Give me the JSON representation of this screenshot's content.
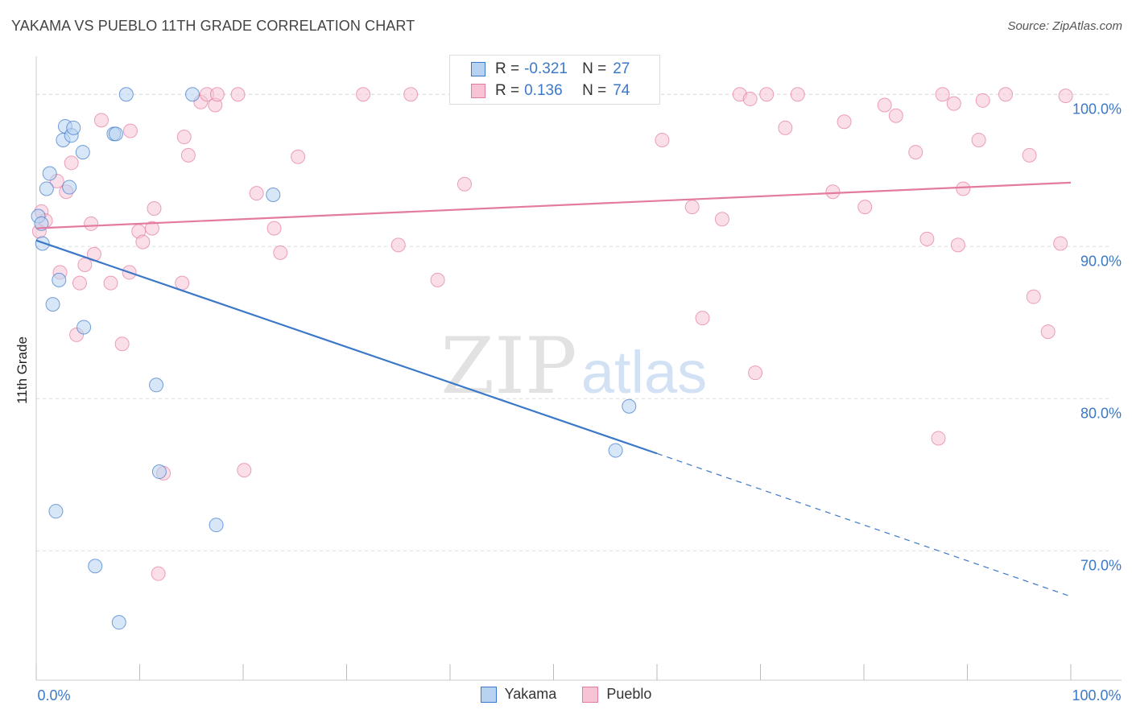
{
  "header": {
    "title": "YAKAMA VS PUEBLO 11TH GRADE CORRELATION CHART",
    "source": "Source: ZipAtlas.com"
  },
  "watermark": {
    "zip": "ZIP",
    "atlas": "atlas"
  },
  "legend": {
    "rows": [
      {
        "r_label": "R =",
        "r_value": "-0.321",
        "n_label": "N =",
        "n_value": "27"
      },
      {
        "r_label": "R =",
        "r_value": "0.136",
        "n_label": "N =",
        "n_value": "74"
      }
    ]
  },
  "colors": {
    "yakama": "#3b78c9",
    "yakama_fill": "#b8d3f2",
    "pueblo": "#e37aa0",
    "pueblo_fill": "#f7c4d5",
    "grid": "#dddddd",
    "tick_label": "#3b78c9"
  },
  "chart_data": {
    "type": "scatter",
    "title": "YAKAMA VS PUEBLO 11TH GRADE CORRELATION CHART",
    "xlabel": "",
    "ylabel": "11th Grade",
    "xlim": [
      0,
      100
    ],
    "ylim": [
      61.5,
      102.5
    ],
    "x_tick_labels": [
      {
        "value": 0,
        "label": "0.0%"
      },
      {
        "value": 100,
        "label": "100.0%"
      }
    ],
    "y_tick_labels": [
      {
        "value": 100,
        "label": "100.0%"
      },
      {
        "value": 90,
        "label": "90.0%"
      },
      {
        "value": 80,
        "label": "80.0%"
      },
      {
        "value": 70,
        "label": "70.0%"
      }
    ],
    "grid": true,
    "legend_position": "bottom-center",
    "series": [
      {
        "name": "Yakama",
        "R": -0.321,
        "N": 27,
        "trend": {
          "x0": 0,
          "y0": 90.4,
          "x1": 60,
          "y1": 76.4,
          "dash_to_x": 100,
          "dash_to_y": 67.0
        },
        "points": [
          [
            0.2,
            92.0
          ],
          [
            0.5,
            91.5
          ],
          [
            0.6,
            90.2
          ],
          [
            1.0,
            93.8
          ],
          [
            1.3,
            94.8
          ],
          [
            1.6,
            86.2
          ],
          [
            1.9,
            72.6
          ],
          [
            2.2,
            87.8
          ],
          [
            2.6,
            97.0
          ],
          [
            2.8,
            97.9
          ],
          [
            3.2,
            93.9
          ],
          [
            3.4,
            97.3
          ],
          [
            3.6,
            97.8
          ],
          [
            4.5,
            96.2
          ],
          [
            4.6,
            84.7
          ],
          [
            5.7,
            69.0
          ],
          [
            7.5,
            97.4
          ],
          [
            7.7,
            97.4
          ],
          [
            8.0,
            65.3
          ],
          [
            8.7,
            100.0
          ],
          [
            11.6,
            80.9
          ],
          [
            11.9,
            75.2
          ],
          [
            15.1,
            100.0
          ],
          [
            17.4,
            71.7
          ],
          [
            22.9,
            93.4
          ],
          [
            56.0,
            76.6
          ],
          [
            57.3,
            79.5
          ]
        ]
      },
      {
        "name": "Pueblo",
        "R": 0.136,
        "N": 74,
        "trend": {
          "x0": 0,
          "y0": 91.2,
          "x1": 100,
          "y1": 94.2
        },
        "points": [
          [
            0.3,
            91.0
          ],
          [
            0.5,
            92.3
          ],
          [
            0.9,
            91.7
          ],
          [
            2.0,
            94.3
          ],
          [
            2.3,
            88.3
          ],
          [
            2.9,
            93.6
          ],
          [
            3.4,
            95.5
          ],
          [
            3.9,
            84.2
          ],
          [
            4.2,
            87.6
          ],
          [
            4.7,
            88.8
          ],
          [
            5.3,
            91.5
          ],
          [
            5.6,
            89.5
          ],
          [
            6.3,
            98.3
          ],
          [
            7.2,
            87.6
          ],
          [
            8.3,
            83.6
          ],
          [
            9.0,
            88.3
          ],
          [
            9.1,
            97.6
          ],
          [
            9.9,
            91.0
          ],
          [
            10.3,
            90.3
          ],
          [
            11.2,
            91.2
          ],
          [
            11.4,
            92.5
          ],
          [
            11.8,
            68.5
          ],
          [
            12.3,
            75.1
          ],
          [
            14.1,
            87.6
          ],
          [
            14.3,
            97.2
          ],
          [
            14.7,
            96.0
          ],
          [
            15.9,
            99.5
          ],
          [
            16.5,
            100.0
          ],
          [
            17.3,
            99.3
          ],
          [
            17.5,
            100.0
          ],
          [
            19.5,
            100.0
          ],
          [
            20.1,
            75.3
          ],
          [
            21.3,
            93.5
          ],
          [
            23.0,
            91.2
          ],
          [
            23.6,
            89.6
          ],
          [
            25.3,
            95.9
          ],
          [
            31.6,
            100.0
          ],
          [
            35.0,
            90.1
          ],
          [
            36.2,
            100.0
          ],
          [
            38.8,
            87.8
          ],
          [
            41.4,
            94.1
          ],
          [
            42.2,
            100.0
          ],
          [
            45.1,
            100.0
          ],
          [
            47.1,
            100.0
          ],
          [
            60.5,
            97.0
          ],
          [
            63.4,
            92.6
          ],
          [
            64.4,
            85.3
          ],
          [
            66.3,
            91.8
          ],
          [
            68.0,
            100.0
          ],
          [
            69.0,
            99.7
          ],
          [
            69.5,
            81.7
          ],
          [
            70.6,
            100.0
          ],
          [
            72.4,
            97.8
          ],
          [
            73.6,
            100.0
          ],
          [
            77.0,
            93.6
          ],
          [
            78.1,
            98.2
          ],
          [
            80.1,
            92.6
          ],
          [
            82.0,
            99.3
          ],
          [
            83.1,
            98.6
          ],
          [
            85.0,
            96.2
          ],
          [
            86.1,
            90.5
          ],
          [
            87.2,
            77.4
          ],
          [
            87.6,
            100.0
          ],
          [
            88.7,
            99.4
          ],
          [
            89.1,
            90.1
          ],
          [
            89.6,
            93.8
          ],
          [
            91.1,
            97.0
          ],
          [
            91.5,
            99.6
          ],
          [
            93.7,
            100.0
          ],
          [
            96.0,
            96.0
          ],
          [
            96.4,
            86.7
          ],
          [
            97.8,
            84.4
          ],
          [
            99.0,
            90.2
          ],
          [
            99.5,
            99.9
          ]
        ]
      }
    ]
  }
}
